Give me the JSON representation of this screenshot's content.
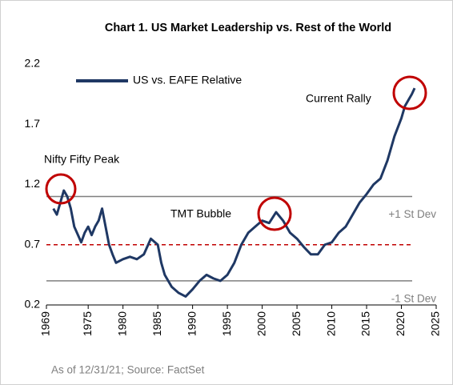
{
  "chart_data": {
    "type": "line",
    "title": "Chart 1. US Market Leadership vs. Rest of the World",
    "source": "As of 12/31/21; Source: FactSet",
    "x": [
      1970,
      1970.5,
      1971,
      1971.5,
      1972,
      1972.5,
      1973,
      1974,
      1974.5,
      1975,
      1975.5,
      1976,
      1976.5,
      1977,
      1977.5,
      1978,
      1978.5,
      1979,
      1980,
      1981,
      1982,
      1983,
      1984,
      1985,
      1985.5,
      1986,
      1987,
      1988,
      1989,
      1990,
      1991,
      1992,
      1993,
      1994,
      1995,
      1996,
      1997,
      1998,
      1999,
      2000,
      2001,
      2002,
      2003,
      2004,
      2005,
      2006,
      2007,
      2008,
      2009,
      2010,
      2011,
      2012,
      2013,
      2014,
      2015,
      2016,
      2017,
      2018,
      2019,
      2020,
      2020.5,
      2021,
      2021.5,
      2021.9
    ],
    "series": [
      {
        "name": "US vs. EAFE Relative",
        "color": "#1f3864",
        "values": [
          1.0,
          0.95,
          1.05,
          1.15,
          1.1,
          1.0,
          0.85,
          0.72,
          0.8,
          0.85,
          0.78,
          0.85,
          0.9,
          1.0,
          0.85,
          0.7,
          0.62,
          0.55,
          0.58,
          0.6,
          0.58,
          0.62,
          0.75,
          0.7,
          0.55,
          0.45,
          0.35,
          0.3,
          0.27,
          0.33,
          0.4,
          0.45,
          0.42,
          0.4,
          0.45,
          0.55,
          0.7,
          0.8,
          0.85,
          0.9,
          0.88,
          0.97,
          0.9,
          0.8,
          0.75,
          0.68,
          0.62,
          0.62,
          0.7,
          0.72,
          0.8,
          0.85,
          0.95,
          1.05,
          1.12,
          1.2,
          1.25,
          1.4,
          1.6,
          1.75,
          1.85,
          1.9,
          1.95,
          2.0
        ]
      }
    ],
    "reference_lines": [
      {
        "label": "+1 St Dev",
        "value": 1.1,
        "color": "#7f7f7f",
        "dashed": false
      },
      {
        "value": 0.7,
        "color": "#c00000",
        "dashed": true
      },
      {
        "label": "-1 St Dev",
        "value": 0.4,
        "color": "#7f7f7f",
        "dashed": false
      }
    ],
    "annotations": [
      "Nifty Fifty Peak",
      "TMT Bubble",
      "Current Rally"
    ],
    "xlim": [
      1969,
      2025
    ],
    "xticks": [
      1969,
      1975,
      1980,
      1985,
      1990,
      1995,
      2000,
      2005,
      2010,
      2015,
      2020,
      2025
    ],
    "ylim": [
      0.2,
      2.2
    ],
    "yticks": [
      0.2,
      0.7,
      1.2,
      1.7,
      2.2
    ],
    "grid": false
  }
}
